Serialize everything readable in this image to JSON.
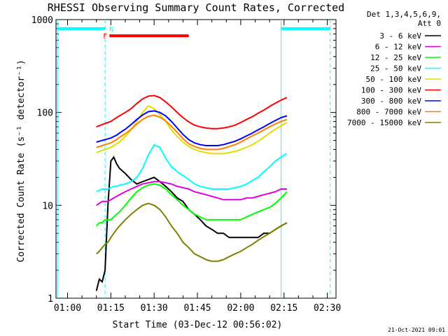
{
  "chart_data": {
    "type": "line",
    "title": "RHESSI Observing Summary Count Rates, Corrected",
    "xlabel": "Start Time (03-Dec-12 00:56:02)",
    "ylabel": "Corrected Count Rate (s⁻¹ detector⁻¹)",
    "yscale": "log",
    "ylim": [
      1,
      1000
    ],
    "xlim_minutes": [
      56.0,
      153.0
    ],
    "x_tick_labels": [
      "01:00",
      "01:15",
      "01:30",
      "01:45",
      "02:00",
      "02:15",
      "02:30"
    ],
    "x_tick_minutes": [
      60,
      75,
      90,
      105,
      120,
      135,
      150
    ],
    "y_tick_labels": [
      "1",
      "10",
      "100",
      "1000"
    ],
    "y_tick_values": [
      1,
      10,
      100,
      1000
    ],
    "legend_header": [
      "Det 1,3,4,5,6,9,",
      "Att 0"
    ],
    "legend_placement": "right",
    "footer_date": "21-Oct-2021 09:01",
    "x_minutes": [
      70,
      71,
      72,
      73,
      74,
      75,
      76,
      77,
      78,
      80,
      82,
      84,
      86,
      88,
      90,
      92,
      94,
      96,
      98,
      100,
      102,
      104,
      106,
      108,
      110,
      112,
      114,
      116,
      118,
      120,
      122,
      124,
      126,
      128,
      130,
      132,
      134,
      136
    ],
    "series": [
      {
        "name": "3 - 6 keV",
        "color": "#000000",
        "values": [
          1.2,
          1.6,
          1.5,
          2.0,
          10,
          30,
          33,
          28,
          25,
          22,
          19,
          17,
          18,
          19,
          20,
          18,
          16,
          14,
          12,
          11,
          9,
          8,
          7,
          6,
          5.5,
          5,
          5,
          4.5,
          4.5,
          4.5,
          4.5,
          4.5,
          4.5,
          5,
          5,
          5.5,
          6,
          6.5
        ]
      },
      {
        "name": "6 - 12 keV",
        "color": "#e000e0",
        "values": [
          10,
          10.5,
          11,
          11,
          11,
          11.5,
          12,
          12.5,
          13,
          14,
          15,
          16,
          17,
          17.5,
          18,
          18,
          17.5,
          17,
          16,
          15.5,
          15,
          14,
          13.5,
          13,
          12.5,
          12,
          11.5,
          11.5,
          11.5,
          11.5,
          12,
          12,
          12.5,
          13,
          13.5,
          14,
          15,
          15
        ]
      },
      {
        "name": "12 - 25 keV",
        "color": "#00ff00",
        "values": [
          6,
          6.5,
          6.5,
          7,
          7,
          7,
          7.5,
          8,
          8.5,
          10,
          12,
          14,
          15.5,
          16.5,
          17,
          16.5,
          15,
          13,
          11.5,
          10,
          9,
          8,
          7.5,
          7,
          7,
          7,
          7,
          7,
          7,
          7,
          7.5,
          8,
          8.5,
          9,
          9.5,
          10.5,
          12,
          14
        ]
      },
      {
        "name": "25 - 50 keV",
        "color": "#00ffff",
        "values": [
          14,
          14.5,
          15,
          15,
          15,
          15.5,
          16,
          16,
          16.5,
          17,
          18,
          20,
          25,
          35,
          45,
          42,
          32,
          26,
          23,
          21,
          19,
          17,
          16,
          15.5,
          15,
          15,
          15,
          15,
          15.5,
          16,
          17,
          18.5,
          20,
          23,
          26,
          30,
          33,
          36
        ]
      },
      {
        "name": "50 - 100 keV",
        "color": "#e0e000",
        "values": [
          37,
          38,
          39,
          40,
          41,
          42,
          44,
          46,
          48,
          55,
          65,
          80,
          100,
          118,
          110,
          95,
          80,
          65,
          55,
          48,
          43,
          40,
          38,
          37,
          36,
          36,
          36,
          37,
          38,
          40,
          42,
          45,
          49,
          54,
          60,
          66,
          72,
          78
        ]
      },
      {
        "name": "100 - 300 keV",
        "color": "#ff0000",
        "values": [
          70,
          72,
          74,
          76,
          78,
          80,
          84,
          88,
          92,
          100,
          110,
          125,
          140,
          150,
          152,
          145,
          130,
          115,
          100,
          88,
          79,
          73,
          70,
          68,
          67,
          67,
          68,
          70,
          73,
          78,
          84,
          90,
          98,
          106,
          116,
          126,
          136,
          145
        ]
      },
      {
        "name": "300 - 800 keV",
        "color": "#0000ff",
        "values": [
          48,
          49,
          50,
          51,
          52,
          53,
          55,
          57,
          60,
          66,
          74,
          84,
          94,
          102,
          104,
          100,
          92,
          80,
          68,
          58,
          51,
          47,
          45,
          44,
          44,
          44,
          45,
          47,
          49,
          52,
          56,
          60,
          65,
          70,
          76,
          82,
          88,
          92
        ]
      },
      {
        "name": "800 - 7000 keV",
        "color": "#ff8000",
        "values": [
          42,
          43,
          44,
          45,
          46,
          47,
          49,
          51,
          54,
          59,
          66,
          75,
          84,
          91,
          93,
          89,
          81,
          71,
          61,
          52,
          46,
          43,
          41,
          40,
          40,
          40,
          41,
          43,
          45,
          48,
          52,
          56,
          60,
          65,
          70,
          75,
          80,
          84
        ]
      },
      {
        "name": "7000 - 15000 keV",
        "color": "#808000",
        "values": [
          3,
          3.2,
          3.5,
          3.8,
          4,
          4.5,
          5,
          5.5,
          6,
          7,
          8,
          9,
          10,
          10.5,
          10,
          9,
          7.5,
          6,
          5,
          4,
          3.5,
          3,
          2.8,
          2.6,
          2.5,
          2.5,
          2.6,
          2.8,
          3,
          3.2,
          3.5,
          3.8,
          4.2,
          4.6,
          5,
          5.5,
          6,
          6.5
        ]
      }
    ],
    "annotations": {
      "attenuator_segments": [
        {
          "start": 56.5,
          "end": 73.0,
          "value": 800
        },
        {
          "start": 134.0,
          "end": 151.0,
          "value": 800
        }
      ],
      "flare_bar": {
        "start": 74.5,
        "end": 102.0,
        "value": 670
      },
      "flare_letter": "F",
      "night_letter": "N",
      "night_start_minute": 73.0,
      "solid_vlines_minute": [
        56.5,
        134.0
      ],
      "dashed_vlines_minute": [
        73.0,
        151.0
      ],
      "colors": {
        "attenuator": "#00ffff",
        "flare": "#ff0000",
        "vline": "#00ffff"
      }
    }
  }
}
